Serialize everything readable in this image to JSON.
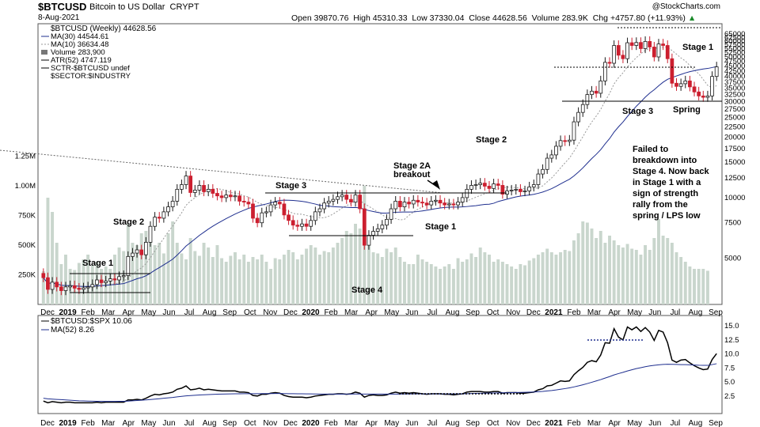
{
  "header": {
    "symbol": "$BTCUSD",
    "name": "Bitcoin to US Dollar",
    "type": "CRYPT",
    "date": "8-Aug-2021",
    "open_label": "Open",
    "open": "39870.76",
    "high_label": "High",
    "high": "45310.33",
    "low_label": "Low",
    "low": "37330.04",
    "close_label": "Close",
    "close": "44628.56",
    "volume_label": "Volume",
    "volume": "283.9K",
    "chg_label": "Chg",
    "chg": "+4757.80 (+11.93%)",
    "copyright": "@StockCharts.com",
    "up_arrow": "▲"
  },
  "legend": {
    "line1": "$BTCUSD (Weekly) 44628.56",
    "line2": "MA(30) 44544.61",
    "line3": "MA(10) 36634.48",
    "line4": "Volume 283,900",
    "line5": "ATR(52) 4747.119",
    "line6": "SCTR-$BTCUSD undef",
    "line7": "$SECTOR:$INDUSTRY"
  },
  "lower_legend": {
    "line1": "$BTCUSD:$SPX 10.06",
    "line2": "MA(52) 8.26"
  },
  "colors": {
    "up": "#1a1a1a",
    "down": "#cc1f2f",
    "ma30": "#1f2f8f",
    "ma10": "#999999",
    "volume": "#c9d6cd",
    "ratio": "#000000",
    "ratio_ma": "#1f2f8f"
  },
  "annotations": {
    "stage2_left": "Stage 2",
    "stage1_left": "Stage 1",
    "stage3_mid": "Stage 3",
    "stage2a_1": "Stage 2A",
    "stage2a_2": "breakout",
    "stage1_mid": "Stage 1",
    "stage4": "Stage 4",
    "stage2_right": "Stage 2",
    "stage3_right": "Stage 3",
    "spring": "Spring",
    "stage1_right": "Stage 1",
    "comment": [
      "Failed to",
      "breakdown into",
      "Stage 4. Now back",
      "in Stage 1 with a",
      "sign of strength",
      "rally from the",
      "spring / LPS low"
    ]
  },
  "chart_data": [
    {
      "type": "candlestick",
      "title": "$BTCUSD (Weekly)",
      "y_scale": "log",
      "y_ticks": [
        "65000",
        "62500",
        "60000",
        "57500",
        "55000",
        "52500",
        "50000",
        "47500",
        "45000",
        "42500",
        "40000",
        "37500",
        "35000",
        "32500",
        "30000",
        "27500",
        "25000",
        "22500",
        "20000",
        "17500",
        "15000",
        "12500",
        "10000",
        "7500",
        "5000"
      ],
      "y_tick_values": [
        65000,
        62500,
        60000,
        57500,
        55000,
        52500,
        50000,
        47500,
        45000,
        42500,
        40000,
        37500,
        35000,
        32500,
        30000,
        27500,
        25000,
        22500,
        20000,
        17500,
        15000,
        12500,
        10000,
        7500,
        5000
      ],
      "volume_ticks": [
        "1.25M",
        "1.00M",
        "750K",
        "500K",
        "250K"
      ],
      "volume_tick_values": [
        1250000,
        1000000,
        750000,
        500000,
        250000
      ],
      "x_labels": [
        "Dec",
        "2019",
        "Feb",
        "Mar",
        "Apr",
        "May",
        "Jun",
        "Jul",
        "Aug",
        "Sep",
        "Oct",
        "Nov",
        "Dec",
        "2020",
        "Feb",
        "Mar",
        "Apr",
        "May",
        "Jun",
        "Jul",
        "Aug",
        "Sep",
        "Oct",
        "Nov",
        "Dec",
        "2021",
        "Feb",
        "Mar",
        "Apr",
        "May",
        "Jun",
        "Jul",
        "Aug",
        "Sep"
      ],
      "closes": [
        4000,
        3500,
        3800,
        3600,
        3450,
        3600,
        3650,
        3550,
        3500,
        3560,
        3600,
        3700,
        3900,
        3780,
        3850,
        3950,
        3900,
        4050,
        4100,
        5100,
        5300,
        5500,
        5200,
        6000,
        7200,
        8000,
        7900,
        8500,
        9000,
        9600,
        11000,
        11600,
        12800,
        10600,
        10900,
        11500,
        10700,
        11000,
        10500,
        10200,
        10000,
        10300,
        10100,
        10200,
        9600,
        9500,
        9300,
        7900,
        7500,
        8400,
        8500,
        9200,
        9500,
        9300,
        8200,
        7700,
        7300,
        7200,
        7400,
        7200,
        7700,
        8500,
        8800,
        9400,
        9600,
        9800,
        10100,
        10300,
        9800,
        9500,
        10300,
        8800,
        5800,
        6500,
        6800,
        7000,
        7300,
        7800,
        8800,
        9600,
        9000,
        9500,
        9300,
        9700,
        9500,
        9400,
        9200,
        9600,
        9700,
        9400,
        9200,
        9300,
        9200,
        9500,
        10000,
        11000,
        11500,
        11600,
        11800,
        11400,
        11100,
        11700,
        11500,
        10400,
        10800,
        10900,
        11000,
        10700,
        10800,
        11300,
        11600,
        13100,
        13800,
        15700,
        16300,
        18000,
        19200,
        19000,
        19300,
        23800,
        26500,
        29000,
        32500,
        33800,
        33000,
        38000,
        47000,
        46500,
        57000,
        51000,
        49000,
        58800,
        57000,
        59000,
        55000,
        59700,
        56000,
        50000,
        58000,
        57000,
        49000,
        37000,
        35700,
        36800,
        38000,
        35500,
        33500,
        32000,
        31500,
        32000,
        40000,
        44628
      ],
      "volume_values": [
        280000,
        900000,
        780000,
        520000,
        340000,
        420000,
        300000,
        290000,
        350000,
        380000,
        420000,
        330000,
        360000,
        300000,
        320000,
        300000,
        420000,
        480000,
        450000,
        680000,
        520000,
        500000,
        600000,
        620000,
        560000,
        500000,
        520000,
        430000,
        600000,
        700000,
        520000,
        430000,
        380000,
        560000,
        450000,
        410000,
        520000,
        480000,
        400000,
        500000,
        390000,
        360000,
        410000,
        440000,
        380000,
        420000,
        360000,
        400000,
        380000,
        420000,
        360000,
        300000,
        390000,
        380000,
        420000,
        460000,
        440000,
        380000,
        420000,
        470000,
        500000,
        480000,
        420000,
        450000,
        440000,
        480000,
        520000,
        560000,
        620000,
        600000,
        680000,
        640000,
        1000000,
        560000,
        440000,
        430000,
        400000,
        470000,
        440000,
        480000,
        400000,
        360000,
        340000,
        340000,
        420000,
        380000,
        360000,
        340000,
        320000,
        300000,
        320000,
        340000,
        300000,
        390000,
        360000,
        380000,
        430000,
        400000,
        480000,
        440000,
        420000,
        360000,
        380000,
        360000,
        340000,
        320000,
        300000,
        340000,
        330000,
        370000,
        390000,
        420000,
        440000,
        470000,
        440000,
        420000,
        440000,
        460000,
        450000,
        540000,
        600000,
        700000,
        690000,
        640000,
        560000,
        620000,
        520000,
        580000,
        540000,
        500000,
        480000,
        510000,
        470000,
        460000,
        420000,
        500000,
        460000,
        560000,
        720000,
        580000,
        560000,
        520000,
        440000,
        400000,
        360000,
        320000,
        300000,
        300000,
        300000,
        283900
      ]
    },
    {
      "type": "line",
      "title": "$BTCUSD:$SPX",
      "y_ticks": [
        "15.0",
        "12.5",
        "10.0",
        "7.5",
        "5.0",
        "2.5"
      ],
      "y_tick_values": [
        15,
        12.5,
        10,
        7.5,
        5,
        2.5
      ],
      "series": [
        {
          "name": "$BTCUSD:$SPX",
          "values": [
            1.6,
            1.3,
            1.5,
            1.4,
            1.3,
            1.4,
            1.4,
            1.3,
            1.3,
            1.3,
            1.3,
            1.3,
            1.4,
            1.3,
            1.4,
            1.4,
            1.4,
            1.4,
            1.4,
            1.8,
            1.8,
            1.9,
            1.8,
            2.1,
            2.5,
            2.8,
            2.7,
            2.9,
            3.0,
            3.2,
            3.7,
            3.9,
            4.3,
            3.6,
            3.7,
            3.9,
            3.6,
            3.7,
            3.6,
            3.5,
            3.4,
            3.4,
            3.4,
            3.4,
            3.2,
            3.2,
            3.1,
            2.6,
            2.5,
            2.8,
            2.8,
            3.0,
            3.1,
            3.0,
            2.6,
            2.4,
            2.3,
            2.3,
            2.3,
            2.2,
            2.3,
            2.5,
            2.6,
            2.7,
            2.8,
            2.8,
            2.9,
            2.9,
            2.8,
            2.9,
            3.2,
            3.0,
            2.3,
            2.6,
            2.7,
            2.6,
            2.6,
            2.7,
            3.0,
            3.2,
            3.0,
            3.1,
            3.0,
            3.1,
            3.0,
            2.9,
            2.8,
            2.9,
            2.9,
            2.9,
            2.8,
            2.8,
            2.7,
            2.8,
            2.9,
            3.2,
            3.3,
            3.3,
            3.3,
            3.2,
            3.2,
            3.3,
            3.3,
            3.0,
            3.1,
            3.1,
            3.1,
            3.0,
            3.0,
            3.1,
            3.2,
            3.6,
            3.8,
            4.3,
            4.4,
            4.8,
            5.2,
            5.1,
            5.2,
            6.3,
            7.0,
            7.6,
            8.5,
            8.8,
            8.6,
            9.8,
            12.0,
            11.9,
            14.5,
            13.0,
            12.5,
            14.8,
            14.3,
            14.8,
            14.0,
            14.7,
            13.9,
            12.4,
            14.2,
            13.9,
            12.0,
            8.9,
            8.5,
            8.9,
            9.0,
            8.4,
            7.9,
            7.5,
            7.2,
            7.3,
            9.0,
            10.06
          ]
        },
        {
          "name": "MA(52)",
          "values": [
            2.1,
            2.0,
            1.95,
            1.9,
            1.85,
            1.8,
            1.75,
            1.7,
            1.65,
            1.62,
            1.6,
            1.58,
            1.56,
            1.55,
            1.54,
            1.54,
            1.54,
            1.55,
            1.56,
            1.6,
            1.65,
            1.7,
            1.75,
            1.8,
            1.87,
            1.95,
            2.02,
            2.1,
            2.17,
            2.25,
            2.35,
            2.44,
            2.52,
            2.58,
            2.63,
            2.68,
            2.72,
            2.76,
            2.79,
            2.82,
            2.84,
            2.86,
            2.88,
            2.89,
            2.9,
            2.91,
            2.92,
            2.92,
            2.92,
            2.93,
            2.93,
            2.93,
            2.94,
            2.94,
            2.93,
            2.92,
            2.91,
            2.9,
            2.89,
            2.88,
            2.87,
            2.86,
            2.85,
            2.85,
            2.85,
            2.85,
            2.85,
            2.85,
            2.85,
            2.85,
            2.86,
            2.86,
            2.85,
            2.85,
            2.85,
            2.85,
            2.84,
            2.84,
            2.85,
            2.85,
            2.85,
            2.86,
            2.86,
            2.87,
            2.87,
            2.87,
            2.87,
            2.87,
            2.88,
            2.88,
            2.88,
            2.88,
            2.88,
            2.89,
            2.9,
            2.92,
            2.94,
            2.96,
            2.98,
            3.0,
            3.02,
            3.04,
            3.06,
            3.07,
            3.08,
            3.1,
            3.12,
            3.14,
            3.16,
            3.19,
            3.22,
            3.27,
            3.32,
            3.4,
            3.48,
            3.58,
            3.7,
            3.82,
            3.95,
            4.12,
            4.3,
            4.5,
            4.72,
            4.95,
            5.18,
            5.42,
            5.7,
            5.96,
            6.26,
            6.5,
            6.72,
            6.96,
            7.18,
            7.38,
            7.55,
            7.72,
            7.86,
            7.96,
            8.06,
            8.12,
            8.16,
            8.14,
            8.12,
            8.1,
            8.1,
            8.06,
            8.02,
            7.98,
            7.96,
            7.96,
            8.1,
            8.26
          ]
        }
      ]
    }
  ]
}
